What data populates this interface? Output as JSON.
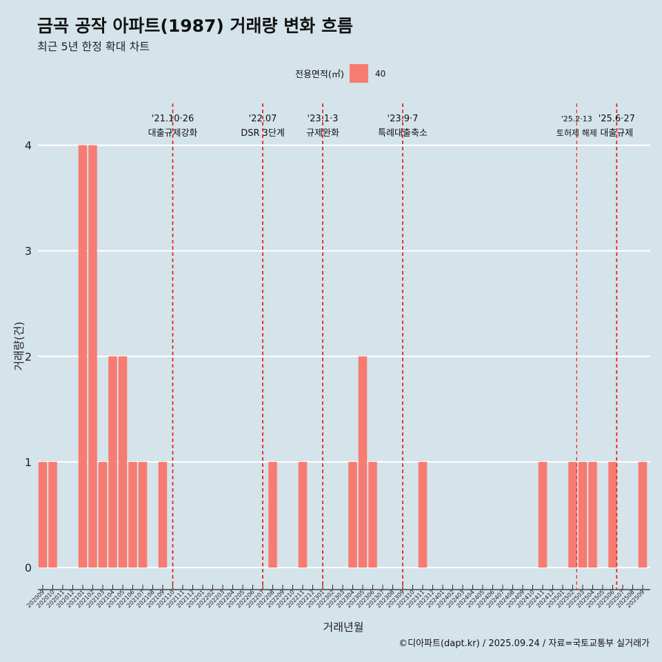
{
  "title": "금곡 공작 아파트(1987) 거래량 변화 흐름",
  "subtitle": "최근 5년 한정 확대 차트",
  "legend": {
    "title": "전용면적(㎡)",
    "item": "40",
    "color": "#f77b71"
  },
  "caption": "©디아파트(dapt.kr) / 2025.09.24 / 자료=국토교통부 실거래가",
  "chart_data": {
    "type": "bar",
    "xlabel": "거래년월",
    "ylabel": "거래량(건)",
    "ylim": [
      0,
      4
    ],
    "yticks": [
      0,
      1,
      2,
      3,
      4
    ],
    "categories": [
      "202009",
      "202010",
      "202011",
      "202012",
      "202101",
      "202102",
      "202103",
      "202104",
      "202105",
      "202106",
      "202107",
      "202108",
      "202109",
      "202110",
      "202111",
      "202112",
      "202201",
      "202202",
      "202203",
      "202204",
      "202205",
      "202206",
      "202207",
      "202208",
      "202209",
      "202210",
      "202211",
      "202212",
      "202301",
      "202302",
      "202303",
      "202304",
      "202305",
      "202306",
      "202307",
      "202308",
      "202309",
      "202310",
      "202311",
      "202312",
      "202401",
      "202402",
      "202403",
      "202404",
      "202405",
      "202406",
      "202407",
      "202408",
      "202409",
      "202410",
      "202411",
      "202412",
      "202501",
      "202502",
      "202503",
      "202504",
      "202505",
      "202506",
      "202507",
      "202508",
      "202509"
    ],
    "series": [
      {
        "name": "40",
        "values": [
          1,
          1,
          0,
          0,
          4,
          4,
          1,
          2,
          2,
          1,
          1,
          0,
          1,
          0,
          0,
          0,
          0,
          0,
          0,
          0,
          0,
          0,
          0,
          1,
          0,
          0,
          1,
          0,
          0,
          0,
          0,
          1,
          2,
          1,
          0,
          0,
          0,
          0,
          1,
          0,
          0,
          0,
          0,
          0,
          0,
          0,
          0,
          0,
          0,
          0,
          1,
          0,
          0,
          1,
          1,
          1,
          0,
          1,
          0,
          0,
          1
        ]
      }
    ],
    "annotations": [
      {
        "month": "202110",
        "offset": 0.0,
        "date": "'21.10·26",
        "label": "대출규제강화",
        "size": "normal"
      },
      {
        "month": "202207",
        "offset": 0.0,
        "date": "'22.07",
        "label": "DSR 3단계",
        "size": "normal"
      },
      {
        "month": "202301",
        "offset": 0.0,
        "date": "'23.1·3",
        "label": "규제완화",
        "size": "normal"
      },
      {
        "month": "202309",
        "offset": 0.0,
        "date": "'23.9·7",
        "label": "특례대출축소",
        "size": "normal"
      },
      {
        "month": "202502",
        "offset": 0.4,
        "date": "'25.2·13",
        "label": "토허제 해제",
        "size": "small"
      },
      {
        "month": "202506",
        "offset": 0.4,
        "date": "'25.6·27",
        "label": "대출규제",
        "size": "normal"
      }
    ]
  }
}
